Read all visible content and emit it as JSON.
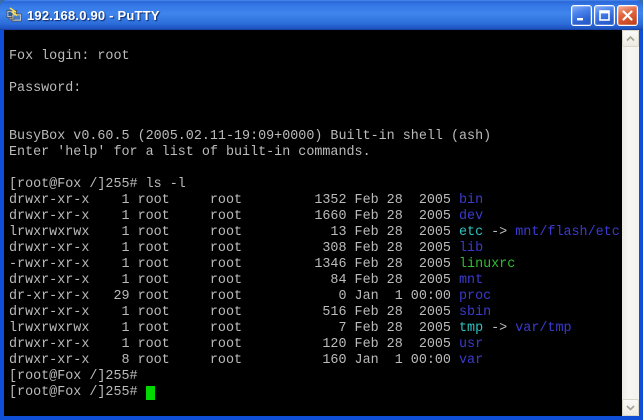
{
  "window": {
    "title": "192.168.0.90 - PuTTY",
    "controls": {
      "minimize": "minimize",
      "maximize": "maximize",
      "close": "close"
    }
  },
  "colors": {
    "term_bg": "#000000",
    "fg": "#bbbbbb",
    "dir": "#3b3bd0",
    "symlink": "#2fc2c2",
    "exec": "#2fbe2f",
    "cursor": "#00d800",
    "titlebar_accent": "#3f85ec",
    "window_border": "#0f4fd8",
    "close_button": "#d5542e"
  },
  "terminal": {
    "lines": [
      [],
      [
        {
          "t": "Fox login: root",
          "c": "fg"
        }
      ],
      [],
      [
        {
          "t": "Password:",
          "c": "fg"
        }
      ],
      [],
      [],
      [
        {
          "t": "BusyBox v0.60.5 (2005.02.11-19:09+0000) Built-in shell (ash)",
          "c": "fg"
        }
      ],
      [
        {
          "t": "Enter 'help' for a list of built-in commands.",
          "c": "fg"
        }
      ],
      [],
      [
        {
          "t": "[root@Fox /]255# ls -l",
          "c": "fg"
        }
      ],
      [
        {
          "t": "drwxr-xr-x    1 root     root         1352 Feb 28  2005 ",
          "c": "fg"
        },
        {
          "t": "bin",
          "c": "dir"
        }
      ],
      [
        {
          "t": "drwxr-xr-x    1 root     root         1660 Feb 28  2005 ",
          "c": "fg"
        },
        {
          "t": "dev",
          "c": "dir"
        }
      ],
      [
        {
          "t": "lrwxrwxrwx    1 root     root           13 Feb 28  2005 ",
          "c": "fg"
        },
        {
          "t": "etc",
          "c": "link"
        },
        {
          "t": " -> ",
          "c": "fg"
        },
        {
          "t": "mnt/flash/etc",
          "c": "dir"
        }
      ],
      [
        {
          "t": "drwxr-xr-x    1 root     root          308 Feb 28  2005 ",
          "c": "fg"
        },
        {
          "t": "lib",
          "c": "dir"
        }
      ],
      [
        {
          "t": "-rwxr-xr-x    1 root     root         1346 Feb 28  2005 ",
          "c": "fg"
        },
        {
          "t": "linuxrc",
          "c": "exec"
        }
      ],
      [
        {
          "t": "drwxr-xr-x    1 root     root           84 Feb 28  2005 ",
          "c": "fg"
        },
        {
          "t": "mnt",
          "c": "dir"
        }
      ],
      [
        {
          "t": "dr-xr-xr-x   29 root     root            0 Jan  1 00:00 ",
          "c": "fg"
        },
        {
          "t": "proc",
          "c": "dir"
        }
      ],
      [
        {
          "t": "drwxr-xr-x    1 root     root          516 Feb 28  2005 ",
          "c": "fg"
        },
        {
          "t": "sbin",
          "c": "dir"
        }
      ],
      [
        {
          "t": "lrwxrwxrwx    1 root     root            7 Feb 28  2005 ",
          "c": "fg"
        },
        {
          "t": "tmp",
          "c": "link"
        },
        {
          "t": " -> ",
          "c": "fg"
        },
        {
          "t": "var/tmp",
          "c": "dir"
        }
      ],
      [
        {
          "t": "drwxr-xr-x    1 root     root          120 Feb 28  2005 ",
          "c": "fg"
        },
        {
          "t": "usr",
          "c": "dir"
        }
      ],
      [
        {
          "t": "drwxr-xr-x    8 root     root          160 Jan  1 00:00 ",
          "c": "fg"
        },
        {
          "t": "var",
          "c": "dir"
        }
      ],
      [
        {
          "t": "[root@Fox /]255#",
          "c": "fg"
        }
      ],
      [
        {
          "t": "[root@Fox /]255# ",
          "c": "fg"
        },
        {
          "t": " ",
          "c": "cursor"
        }
      ]
    ]
  }
}
